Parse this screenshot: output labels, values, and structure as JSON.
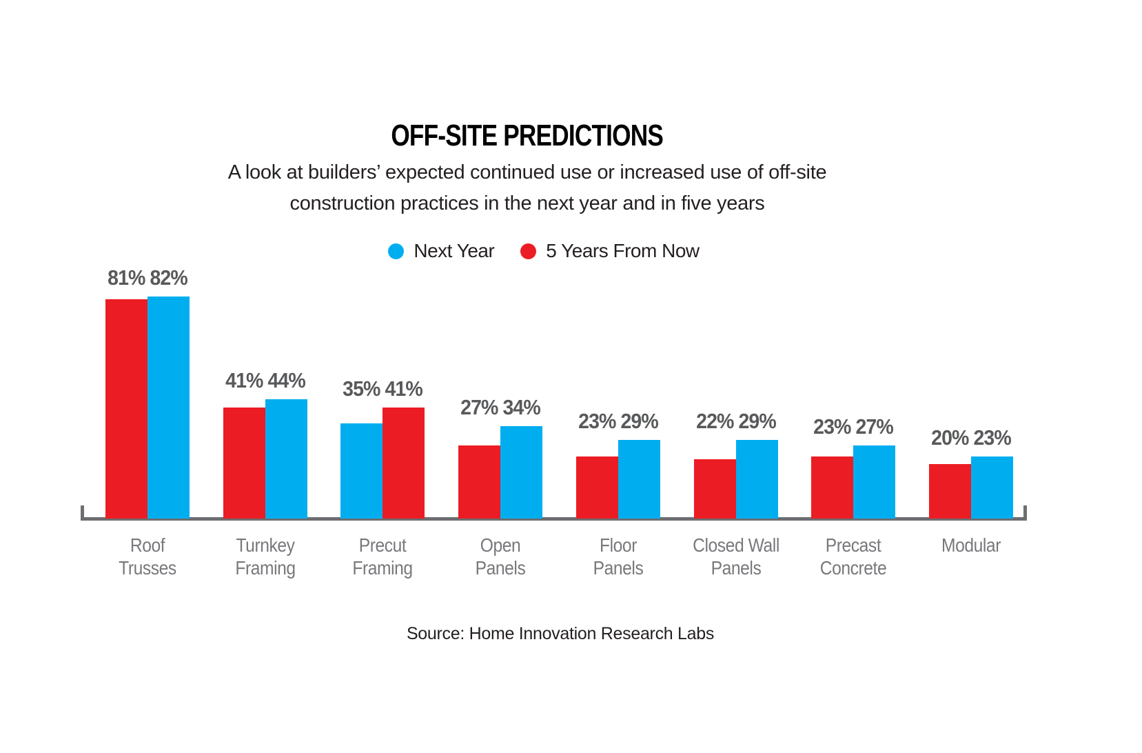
{
  "title": "OFF-SITE PREDICTIONS",
  "subtitle": {
    "line1": "A look at builders’ expected continued use or increased use of off-site",
    "line2": "construction practices in the next year and in five years"
  },
  "legend": {
    "items": [
      {
        "label": "Next Year",
        "color_key": "blue"
      },
      {
        "label": "5 Years From Now",
        "color_key": "red"
      }
    ]
  },
  "source": "Source: Home Innovation Research Labs",
  "colors": {
    "blue": "#00AEEF",
    "red": "#EC1C24",
    "value_label_gray": "#58595B",
    "category_gray": "#77787B",
    "axis_gray": "#6D6E71",
    "text_black": "#231F20"
  },
  "chart_data": {
    "type": "bar",
    "unit": "%",
    "title": "OFF-SITE PREDICTIONS",
    "subtitle": "A look at builders’ expected continued use or increased use of off-site construction practices in the next year and in five years",
    "categories": [
      "Roof Trusses",
      "Turnkey Framing",
      "Precut Framing",
      "Open Panels",
      "Floor Panels",
      "Closed Wall Panels",
      "Precast Concrete",
      "Modular"
    ],
    "category_lines": [
      [
        "Roof",
        "Trusses"
      ],
      [
        "Turnkey",
        "Framing"
      ],
      [
        "Precut",
        "Framing"
      ],
      [
        "Open",
        "Panels"
      ],
      [
        "Floor",
        "Panels"
      ],
      [
        "Closed Wall",
        "Panels"
      ],
      [
        "Precast",
        "Concrete"
      ],
      [
        "Modular"
      ]
    ],
    "series": [
      {
        "name": "Next Year",
        "color_key": "blue",
        "values": [
          82,
          44,
          35,
          34,
          29,
          29,
          27,
          23
        ]
      },
      {
        "name": "5 Years From Now",
        "color_key": "red",
        "values": [
          81,
          41,
          41,
          27,
          23,
          22,
          23,
          20
        ]
      }
    ],
    "bar_order": [
      [
        "red",
        "blue"
      ],
      [
        "red",
        "blue"
      ],
      [
        "blue",
        "red"
      ],
      [
        "red",
        "blue"
      ],
      [
        "red",
        "blue"
      ],
      [
        "red",
        "blue"
      ],
      [
        "red",
        "blue"
      ],
      [
        "red",
        "blue"
      ]
    ],
    "value_labels": [
      "81% 82%",
      "41% 44%",
      "35% 41%",
      "27% 34%",
      "23% 29%",
      "22% 29%",
      "23% 27%",
      "20% 23%"
    ],
    "ylim": [
      0,
      90
    ],
    "grid": false,
    "value_axis_visible": false,
    "legend_position": "top-center"
  }
}
